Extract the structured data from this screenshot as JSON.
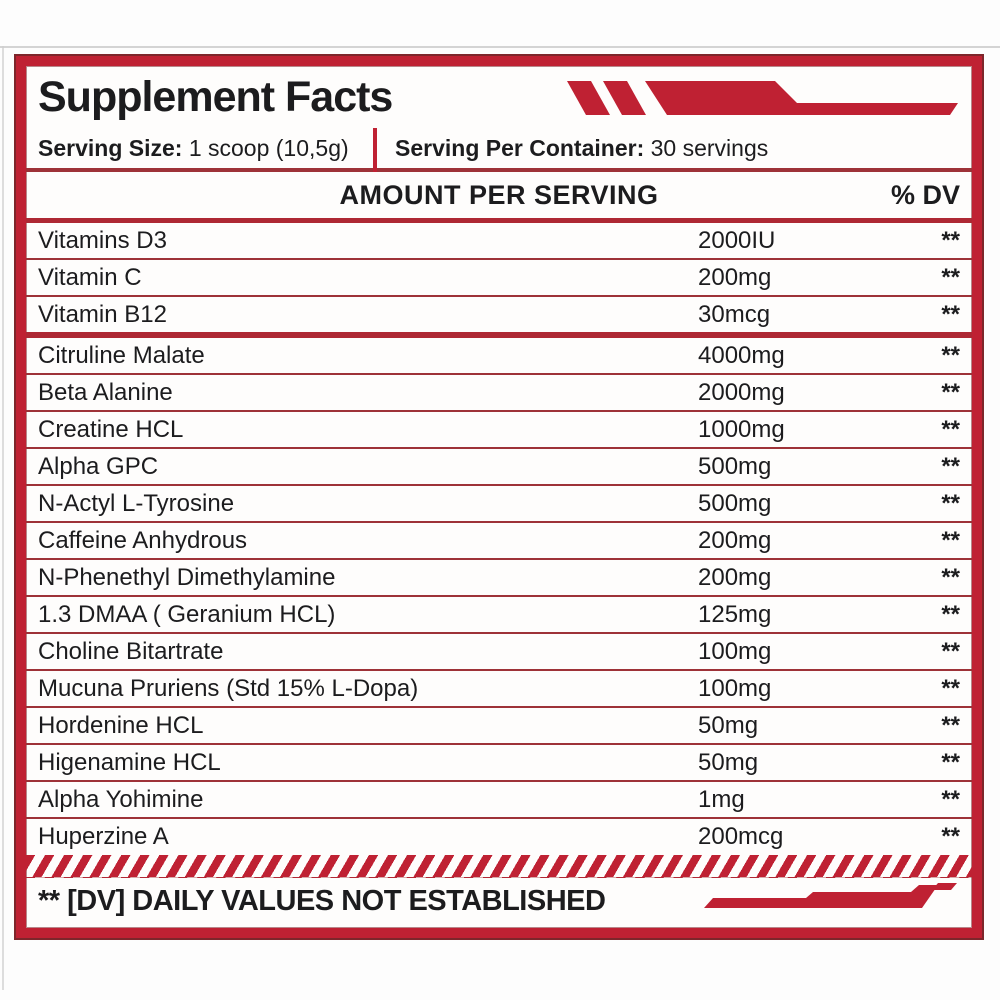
{
  "title": "Supplement Facts",
  "serving": {
    "size_label": "Serving Size:",
    "size_value": "1 scoop (10,5g)",
    "container_label": "Serving Per Container:",
    "container_value": "30 servings"
  },
  "table": {
    "amount_header": "AMOUNT PER SERVING",
    "dv_header": "% DV",
    "rows": [
      {
        "name": "Vitamins D3",
        "amount": "2000IU",
        "dv": "**",
        "section_end": false
      },
      {
        "name": "Vitamin C",
        "amount": "200mg",
        "dv": "**",
        "section_end": false
      },
      {
        "name": "Vitamin B12",
        "amount": "30mcg",
        "dv": "**",
        "section_end": true
      },
      {
        "name": "Citruline Malate",
        "amount": "4000mg",
        "dv": "**",
        "section_end": false
      },
      {
        "name": "Beta Alanine",
        "amount": "2000mg",
        "dv": "**",
        "section_end": false
      },
      {
        "name": "Creatine HCL",
        "amount": "1000mg",
        "dv": "**",
        "section_end": false
      },
      {
        "name": "Alpha GPC",
        "amount": "500mg",
        "dv": "**",
        "section_end": false
      },
      {
        "name": "N-Actyl L-Tyrosine",
        "amount": "500mg",
        "dv": "**",
        "section_end": false
      },
      {
        "name": "Caffeine Anhydrous",
        "amount": "200mg",
        "dv": "**",
        "section_end": false
      },
      {
        "name": "N-Phenethyl Dimethylamine",
        "amount": "200mg",
        "dv": "**",
        "section_end": false
      },
      {
        "name": "1.3 DMAA ( Geranium HCL)",
        "amount": "125mg",
        "dv": "**",
        "section_end": false
      },
      {
        "name": "Choline Bitartrate",
        "amount": "100mg",
        "dv": "**",
        "section_end": false
      },
      {
        "name": "Mucuna Pruriens (Std 15% L-Dopa)",
        "amount": "100mg",
        "dv": "**",
        "section_end": false
      },
      {
        "name": "Hordenine HCL",
        "amount": "50mg",
        "dv": "**",
        "section_end": false
      },
      {
        "name": "Higenamine HCL",
        "amount": "50mg",
        "dv": "**",
        "section_end": false
      },
      {
        "name": "Alpha Yohimine",
        "amount": "1mg",
        "dv": "**",
        "section_end": false
      },
      {
        "name": "Huperzine A",
        "amount": "200mcg",
        "dv": "**",
        "section_end": false
      }
    ]
  },
  "footnote": "** [DV] DAILY VALUES NOT ESTABLISHED",
  "colors": {
    "accent_red": "#bf2133",
    "separator_maroon": "#9e3238",
    "thick_separator": "#ae2834",
    "frame_outline": "#7d262b",
    "text": "#1c1c1e"
  }
}
